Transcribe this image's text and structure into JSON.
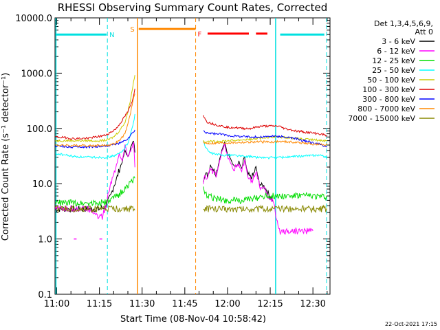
{
  "chart_data": {
    "type": "line",
    "title": "RHESSI Observing Summary Count Rates, Corrected",
    "xlabel": "Start Time (08-Nov-04 10:58:42)",
    "ylabel": "Corrected Count Rate (s⁻¹ detector⁻¹)",
    "yscale": "log",
    "ylim": [
      0.1,
      10000
    ],
    "xlim_minutes": [
      10.7,
      37.0
    ],
    "x_unit": "minutes after 11:00 UT",
    "yticks": [
      "10000.0",
      "1000.0",
      "100.0",
      "10.0",
      "1.0",
      "0.1"
    ],
    "xticks": [
      {
        "label": "11:00",
        "min": 0
      },
      {
        "label": "11:15",
        "min": 15
      },
      {
        "label": "11:30",
        "min": 30
      },
      {
        "label": "11:45",
        "min": 45
      },
      {
        "label": "12:00",
        "min": 60
      },
      {
        "label": "12:15",
        "min": 75
      },
      {
        "label": "12:30",
        "min": 90
      }
    ],
    "legend": {
      "position": "right",
      "header": [
        "Det 1,3,4,5,6,9,",
        "Att 0"
      ],
      "entries": [
        {
          "label": "3 - 6 keV",
          "color": "#000000"
        },
        {
          "label": "6 - 12 keV",
          "color": "#ff00ff"
        },
        {
          "label": "12 - 25 keV",
          "color": "#00dd00"
        },
        {
          "label": "25 - 50 keV",
          "color": "#00ffff"
        },
        {
          "label": "50 - 100 keV",
          "color": "#cccc00"
        },
        {
          "label": "100 - 300 keV",
          "color": "#dd0000"
        },
        {
          "label": "300 - 800 keV",
          "color": "#0000ff"
        },
        {
          "label": "800 - 7000 keV",
          "color": "#ff8800"
        },
        {
          "label": "7000 - 15000 keV",
          "color": "#888800"
        }
      ]
    },
    "flags": {
      "N": {
        "label": "N",
        "color": "#00e0e0",
        "level": 5000,
        "intervals": [
          [
            -0.5,
            17.5
          ],
          [
            78.5,
            94
          ]
        ],
        "boundaries": [
          17.8,
          94.8
        ]
      },
      "S": {
        "label": "S",
        "color": "#ff8800",
        "level": 6300,
        "intervals": [
          [
            28.8,
            48.8
          ]
        ],
        "boundaries": [
          28.4,
          48.8
        ]
      },
      "F": {
        "label": "F",
        "color": "#ff0000",
        "level": 5200,
        "intervals": [
          [
            53,
            67.5
          ],
          [
            70,
            74
          ]
        ]
      },
      "dashed_boundaries": [
        17.8,
        48.8,
        94.8
      ],
      "solid_boundaries": [
        28.4,
        76.9
      ]
    },
    "data_gap_minutes": [
      27.8,
      51.5
    ],
    "series": [
      {
        "name": "3 - 6 keV",
        "color": "#000000",
        "x": [
          -0.5,
          5,
          10,
          15,
          17,
          19,
          20,
          21,
          22,
          23,
          24,
          25,
          26,
          27,
          27.7,
          51.5,
          52,
          53,
          54,
          55,
          56,
          57,
          58,
          59,
          60,
          61,
          62,
          63,
          64,
          65,
          66,
          67,
          68,
          69,
          70,
          71,
          72,
          73,
          74,
          75,
          76
        ],
        "y": [
          3.5,
          3.5,
          3.5,
          3.5,
          3.8,
          6,
          9,
          12,
          18,
          25,
          40,
          30,
          45,
          60,
          30,
          12,
          15,
          14,
          22,
          18,
          15,
          25,
          40,
          55,
          35,
          30,
          22,
          20,
          25,
          18,
          30,
          15,
          13,
          14,
          20,
          11,
          9,
          9,
          7,
          6,
          5
        ]
      },
      {
        "name": "6 - 12 keV",
        "color": "#ff00ff",
        "x": [
          -0.5,
          8,
          12,
          15,
          16,
          17,
          18,
          19,
          20,
          21,
          22,
          23,
          24,
          25,
          26,
          27,
          27.7,
          51.5,
          52,
          53,
          54,
          55,
          56,
          57,
          58,
          59,
          60,
          61,
          62,
          63,
          64,
          65,
          66,
          67,
          68,
          69,
          70,
          71,
          72,
          73,
          74,
          75,
          76,
          77,
          78,
          80,
          90
        ],
        "y": [
          3.5,
          3.5,
          3.5,
          2.5,
          2.5,
          3.5,
          6,
          10,
          15,
          22,
          35,
          25,
          50,
          30,
          40,
          55,
          12,
          10,
          13,
          12,
          18,
          16,
          14,
          22,
          38,
          50,
          30,
          25,
          18,
          20,
          22,
          16,
          28,
          14,
          12,
          12,
          18,
          10,
          8,
          8,
          6,
          5.5,
          5,
          2.5,
          1.4,
          1.4,
          1.4
        ]
      },
      {
        "name": "12 - 25 keV",
        "color": "#00dd00",
        "x": [
          -0.5,
          5,
          10,
          15,
          18,
          20,
          22,
          24,
          26,
          27.7,
          51.5,
          52,
          55,
          58,
          60,
          62,
          65,
          68,
          70,
          72,
          75,
          78,
          82,
          86,
          90,
          94,
          95
        ],
        "y": [
          4.5,
          4.5,
          4.5,
          4.5,
          4.6,
          5.5,
          6.5,
          8,
          11,
          12,
          8,
          6.5,
          5.5,
          5.2,
          5,
          5,
          5,
          5.2,
          5.5,
          6,
          6,
          6,
          6,
          6,
          6,
          5.8,
          5.8
        ]
      },
      {
        "name": "25 - 50 keV",
        "color": "#00ffff",
        "x": [
          -0.5,
          3,
          6,
          10,
          14,
          17,
          19,
          21,
          23,
          25,
          26.5,
          27.7,
          51.5,
          52,
          53,
          54,
          56,
          58,
          60,
          62,
          64,
          66,
          68,
          70,
          72,
          74,
          76,
          78,
          80,
          84,
          88,
          92,
          95
        ],
        "y": [
          35,
          33,
          31,
          30,
          30,
          30,
          31,
          33,
          38,
          55,
          100,
          200,
          60,
          50,
          40,
          36,
          34,
          33,
          33,
          33,
          32,
          31,
          31,
          30,
          30,
          29,
          30,
          30,
          30,
          31,
          32,
          33,
          30
        ]
      },
      {
        "name": "50 - 100 keV",
        "color": "#cccc00",
        "x": [
          -0.5,
          5,
          10,
          15,
          18,
          20,
          22,
          24,
          25,
          26,
          27,
          27.7,
          51.5,
          52,
          55,
          60,
          65,
          70,
          75,
          78,
          82,
          86,
          90,
          95
        ],
        "y": [
          60,
          60,
          60,
          60,
          62,
          70,
          90,
          130,
          200,
          350,
          700,
          1100,
          60,
          58,
          58,
          60,
          62,
          65,
          70,
          70,
          68,
          64,
          62,
          60
        ]
      },
      {
        "name": "100 - 300 keV",
        "color": "#dd0000",
        "x": [
          -0.5,
          3,
          6,
          10,
          14,
          17,
          19,
          21,
          23,
          25,
          26.5,
          27.7,
          51.5,
          52,
          53,
          55,
          58,
          60,
          62,
          65,
          68,
          70,
          72,
          75,
          78,
          80,
          84,
          88,
          92,
          95
        ],
        "y": [
          70,
          68,
          65,
          66,
          70,
          75,
          85,
          100,
          140,
          200,
          300,
          600,
          180,
          150,
          130,
          120,
          110,
          105,
          105,
          100,
          100,
          105,
          110,
          110,
          110,
          100,
          90,
          85,
          80,
          75
        ]
      },
      {
        "name": "300 - 800 keV",
        "color": "#0000ff",
        "x": [
          -0.5,
          3,
          6,
          10,
          14,
          17,
          19,
          21,
          23,
          25,
          26.5,
          27.7,
          51.5,
          52,
          55,
          58,
          60,
          62,
          65,
          68,
          70,
          72,
          75,
          78,
          80,
          84,
          88,
          92,
          95
        ],
        "y": [
          48,
          47,
          46,
          46,
          47,
          48,
          50,
          52,
          56,
          65,
          80,
          95,
          90,
          85,
          80,
          78,
          75,
          73,
          72,
          70,
          70,
          70,
          72,
          72,
          70,
          65,
          58,
          52,
          46
        ]
      },
      {
        "name": "800 - 7000 keV",
        "color": "#ff8800",
        "x": [
          -0.5,
          5,
          10,
          15,
          18,
          20,
          22,
          24,
          25,
          26,
          27,
          27.7,
          51.5,
          52,
          55,
          60,
          65,
          70,
          75,
          78,
          82,
          86,
          90,
          95
        ],
        "y": [
          50,
          49,
          49,
          49,
          50,
          52,
          60,
          80,
          120,
          200,
          350,
          500,
          55,
          54,
          54,
          55,
          56,
          57,
          57,
          58,
          57,
          55,
          52,
          50
        ]
      },
      {
        "name": "7000 - 15000 keV",
        "color": "#888800",
        "x": [
          -0.5,
          5,
          10,
          15,
          20,
          25,
          27.7,
          51.5,
          55,
          60,
          65,
          70,
          75,
          80,
          85,
          90,
          95
        ],
        "y": [
          3.5,
          3.5,
          3.5,
          3.5,
          3.5,
          3.5,
          3.5,
          3.5,
          3.5,
          3.5,
          3.5,
          3.5,
          3.5,
          3.5,
          3.5,
          3.5,
          3.5
        ]
      }
    ],
    "stray_points": [
      {
        "color": "#ff00ff",
        "x": 6.5,
        "y": 1.0
      },
      {
        "color": "#ff00ff",
        "x": 15.5,
        "y": 1.0
      }
    ]
  },
  "footer": {
    "timestamp": "22-Oct-2021 17:15"
  }
}
